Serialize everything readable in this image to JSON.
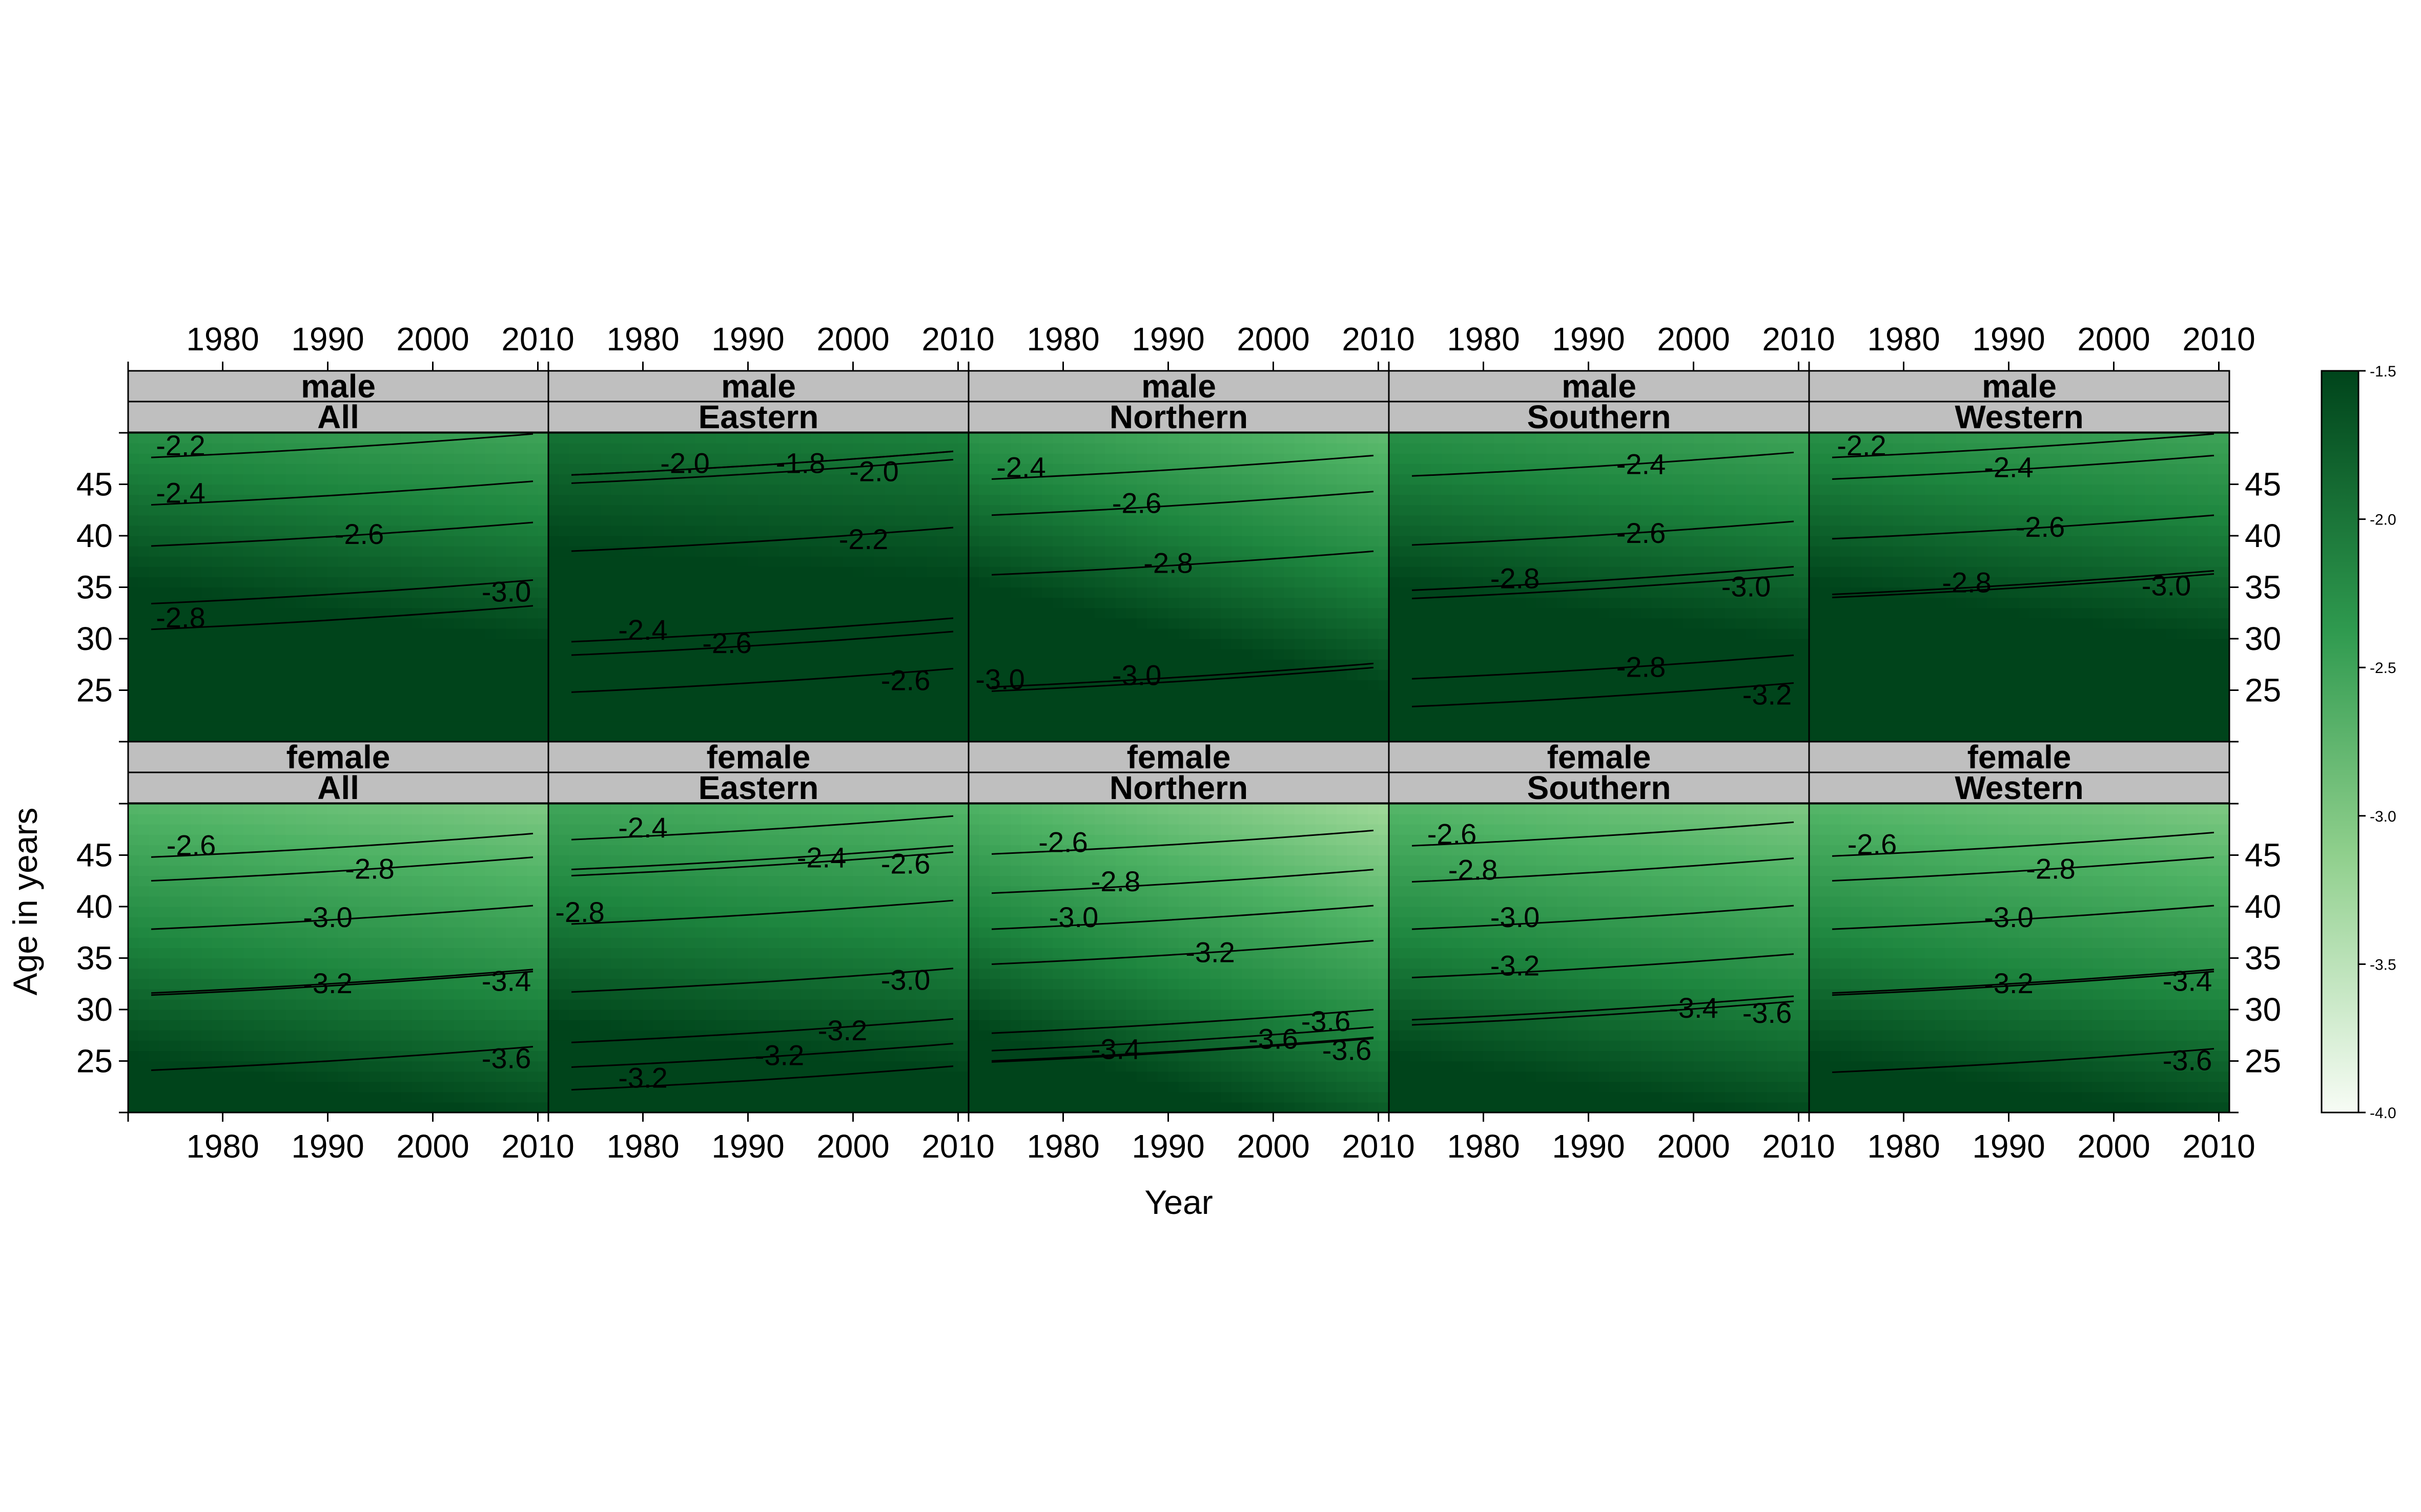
{
  "chart_data": {
    "type": "heatmap",
    "xlabel": "Year",
    "ylabel": "Age in years",
    "x_ticks": [
      1980,
      1990,
      2000,
      2010
    ],
    "y_ticks": [
      25,
      30,
      35,
      40,
      45
    ],
    "xlim": [
      1971,
      2011
    ],
    "ylim": [
      20,
      50
    ],
    "colorbar": {
      "range": [
        -4.0,
        -1.5
      ],
      "ticks": [
        -1.5,
        -2.0,
        -2.5,
        -3.0,
        -3.5,
        -4.0
      ],
      "tick_labels": [
        "-1.5",
        "-2.0",
        "-2.5",
        "-3.0",
        "-3.5",
        "-4.0"
      ],
      "low_color": "#f7fcf5",
      "high_color": "#00441b"
    },
    "grid": false,
    "panels": [
      {
        "sex": "male",
        "region": "All",
        "surface": {
          "base": -2.1,
          "slope_age": -0.041,
          "slope_year": -0.006
        },
        "contours": [
          {
            "label": "-2.2",
            "x": 1976,
            "age": 48.7
          },
          {
            "label": "-2.4",
            "x": 1976,
            "age": 44.1
          },
          {
            "label": "-2.6",
            "x": 1993,
            "age": 40.1
          },
          {
            "label": "-2.8",
            "x": 1976,
            "age": 32.0
          },
          {
            "label": "-3.0",
            "x": 2007,
            "age": 34.5
          }
        ]
      },
      {
        "sex": "male",
        "region": "Eastern",
        "surface": {
          "base": -1.85,
          "slope_age": -0.032,
          "slope_year": -0.003
        },
        "contours": [
          {
            "label": "-2.0",
            "x": 1984,
            "age": 47.0
          },
          {
            "label": "-1.8",
            "x": 1995,
            "age": 47.0
          },
          {
            "label": "-2.0",
            "x": 2002,
            "age": 46.2
          },
          {
            "label": "-2.2",
            "x": 2001,
            "age": 39.6
          },
          {
            "label": "-2.4",
            "x": 1980,
            "age": 30.8
          },
          {
            "label": "-2.6",
            "x": 1988,
            "age": 29.5
          },
          {
            "label": "-2.6",
            "x": 2005,
            "age": 25.9
          }
        ]
      },
      {
        "sex": "male",
        "region": "Northern",
        "surface": {
          "base": -2.15,
          "slope_age": -0.045,
          "slope_year": -0.012
        },
        "contours": [
          {
            "label": "-2.4",
            "x": 1976,
            "age": 46.6
          },
          {
            "label": "-2.6",
            "x": 1987,
            "age": 43.1
          },
          {
            "label": "-2.8",
            "x": 1990,
            "age": 37.3
          },
          {
            "label": "-3.0",
            "x": 1974,
            "age": 26.0
          },
          {
            "label": "-3.0",
            "x": 1987,
            "age": 26.4
          }
        ]
      },
      {
        "sex": "male",
        "region": "Southern",
        "surface": {
          "base": -2.1,
          "slope_age": -0.041,
          "slope_year": -0.006
        },
        "contours": [
          {
            "label": "-2.4",
            "x": 1995,
            "age": 46.9
          },
          {
            "label": "-2.6",
            "x": 1995,
            "age": 40.2
          },
          {
            "label": "-2.8",
            "x": 1983,
            "age": 35.8
          },
          {
            "label": "-3.0",
            "x": 2005,
            "age": 35.0
          },
          {
            "label": "-2.8",
            "x": 1995,
            "age": 27.2
          },
          {
            "label": "-3.2",
            "x": 2007,
            "age": 24.5
          }
        ]
      },
      {
        "sex": "male",
        "region": "Western",
        "surface": {
          "base": -2.1,
          "slope_age": -0.041,
          "slope_year": -0.006
        },
        "contours": [
          {
            "label": "-2.2",
            "x": 1976,
            "age": 48.7
          },
          {
            "label": "-2.4",
            "x": 1990,
            "age": 46.6
          },
          {
            "label": "-2.6",
            "x": 1993,
            "age": 40.8
          },
          {
            "label": "-2.8",
            "x": 1986,
            "age": 35.4
          },
          {
            "label": "-3.0",
            "x": 2005,
            "age": 35.1
          }
        ]
      },
      {
        "sex": "female",
        "region": "All",
        "surface": {
          "base": -2.55,
          "slope_age": -0.043,
          "slope_year": -0.007
        },
        "contours": [
          {
            "label": "-2.6",
            "x": 1977,
            "age": 45.9
          },
          {
            "label": "-2.8",
            "x": 1994,
            "age": 43.6
          },
          {
            "label": "-3.0",
            "x": 1990,
            "age": 38.9
          },
          {
            "label": "-3.2",
            "x": 1990,
            "age": 32.5
          },
          {
            "label": "-3.4",
            "x": 2007,
            "age": 32.7
          },
          {
            "label": "-3.6",
            "x": 2007,
            "age": 25.2
          }
        ]
      },
      {
        "sex": "female",
        "region": "Eastern",
        "surface": {
          "base": -2.35,
          "slope_age": -0.04,
          "slope_year": -0.005
        },
        "contours": [
          {
            "label": "-2.4",
            "x": 1980,
            "age": 47.6
          },
          {
            "label": "-2.4",
            "x": 1997,
            "age": 44.7
          },
          {
            "label": "-2.6",
            "x": 2005,
            "age": 44.1
          },
          {
            "label": "-2.8",
            "x": 1974,
            "age": 39.4
          },
          {
            "label": "-3.0",
            "x": 2005,
            "age": 32.8
          },
          {
            "label": "-3.2",
            "x": 1999,
            "age": 27.9
          },
          {
            "label": "-3.2",
            "x": 1993,
            "age": 25.5
          },
          {
            "label": "-3.2",
            "x": 1980,
            "age": 23.3
          }
        ]
      },
      {
        "sex": "female",
        "region": "Northern",
        "surface": {
          "base": -2.5,
          "slope_age": -0.046,
          "slope_year": -0.014
        },
        "contours": [
          {
            "label": "-2.6",
            "x": 1980,
            "age": 46.2
          },
          {
            "label": "-2.8",
            "x": 1985,
            "age": 42.4
          },
          {
            "label": "-3.0",
            "x": 1981,
            "age": 38.9
          },
          {
            "label": "-3.2",
            "x": 1994,
            "age": 35.5
          },
          {
            "label": "-3.4",
            "x": 1985,
            "age": 26.1
          },
          {
            "label": "-3.6",
            "x": 2000,
            "age": 27.1
          },
          {
            "label": "-3.6",
            "x": 2005,
            "age": 28.8
          },
          {
            "label": "-3.6",
            "x": 2007,
            "age": 26.0
          }
        ]
      },
      {
        "sex": "female",
        "region": "Southern",
        "surface": {
          "base": -2.55,
          "slope_age": -0.043,
          "slope_year": -0.007
        },
        "contours": [
          {
            "label": "-2.6",
            "x": 1977,
            "age": 47.0
          },
          {
            "label": "-2.8",
            "x": 1979,
            "age": 43.5
          },
          {
            "label": "-3.0",
            "x": 1983,
            "age": 38.9
          },
          {
            "label": "-3.2",
            "x": 1983,
            "age": 34.2
          },
          {
            "label": "-3.4",
            "x": 2000,
            "age": 30.1
          },
          {
            "label": "-3.6",
            "x": 2007,
            "age": 29.6
          }
        ]
      },
      {
        "sex": "female",
        "region": "Western",
        "surface": {
          "base": -2.55,
          "slope_age": -0.043,
          "slope_year": -0.007
        },
        "contours": [
          {
            "label": "-2.6",
            "x": 1977,
            "age": 46.0
          },
          {
            "label": "-2.8",
            "x": 1994,
            "age": 43.6
          },
          {
            "label": "-3.0",
            "x": 1990,
            "age": 38.9
          },
          {
            "label": "-3.2",
            "x": 1990,
            "age": 32.5
          },
          {
            "label": "-3.4",
            "x": 2007,
            "age": 32.7
          },
          {
            "label": "-3.6",
            "x": 2007,
            "age": 25.0
          }
        ]
      }
    ]
  }
}
